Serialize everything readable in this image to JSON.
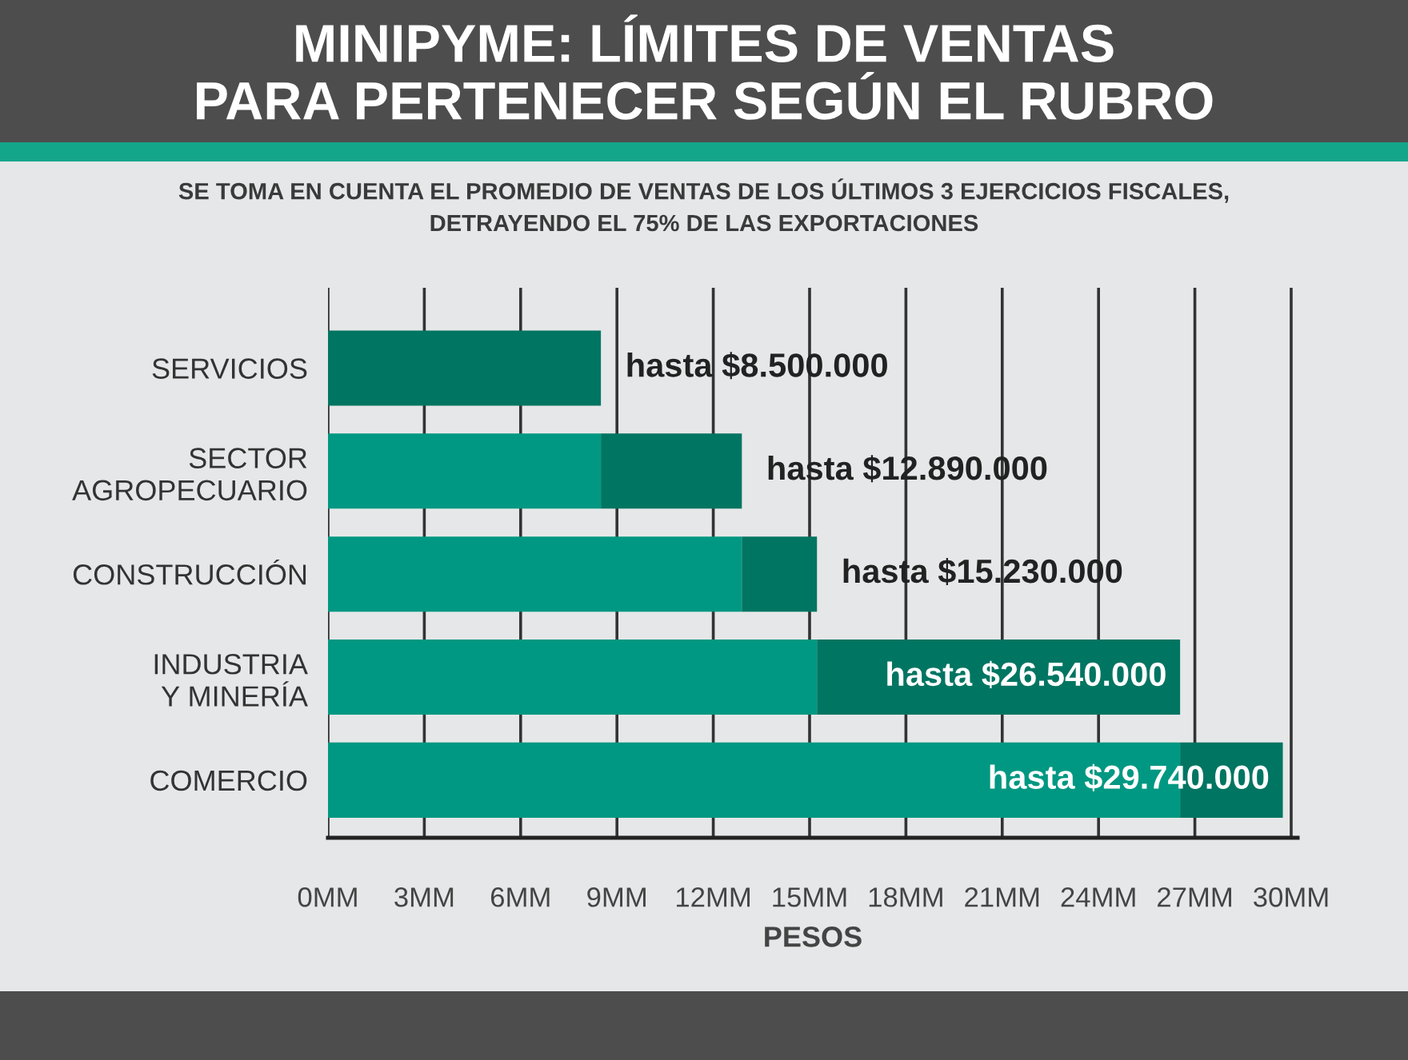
{
  "chart_data": {
    "type": "bar",
    "orientation": "horizontal",
    "stacked": true,
    "title": "MINIPYME: LÍMITES DE VENTAS\nPARA PERTENECER SEGÚN EL RUBRO",
    "subtitle": "SE TOMA EN CUENTA EL PROMEDIO DE VENTAS DE LOS ÚLTIMOS 3 EJERCICIOS FISCALES,\nDETRAYENDO EL 75% DE LAS EXPORTACIONES",
    "xlabel": "PESOS",
    "categories": [
      "SERVICIOS",
      "SECTOR\nAGROPECUARIO",
      "CONSTRUCCIÓN",
      "INDUSTRIA\nY MINERÍA",
      "COMERCIO"
    ],
    "series": [
      {
        "color": "#009882",
        "values": [
          null,
          8.5,
          12.89,
          15.23,
          26.54
        ]
      },
      {
        "color": "#007562",
        "values": [
          8.5,
          4.39,
          2.34,
          11.31,
          3.2
        ]
      }
    ],
    "totals": [
      "hasta $8.500.000",
      "hasta $12.890.000",
      "hasta $15.230.000",
      "hasta $26.540.000",
      "hasta $29.740.000"
    ],
    "xlim": [
      0,
      30.2
    ],
    "xticks": [
      {
        "value": 0,
        "label": "0MM"
      },
      {
        "value": 3,
        "label": "3MM"
      },
      {
        "value": 6,
        "label": "6MM"
      },
      {
        "value": 9,
        "label": "9MM"
      },
      {
        "value": 12,
        "label": "12MM"
      },
      {
        "value": 15,
        "label": "15MM"
      },
      {
        "value": 18,
        "label": "18MM"
      },
      {
        "value": 21,
        "label": "21MM"
      },
      {
        "value": 24,
        "label": "24MM"
      },
      {
        "value": 27,
        "label": "27MM"
      },
      {
        "value": 30,
        "label": "30MM"
      }
    ],
    "grid": "x"
  }
}
